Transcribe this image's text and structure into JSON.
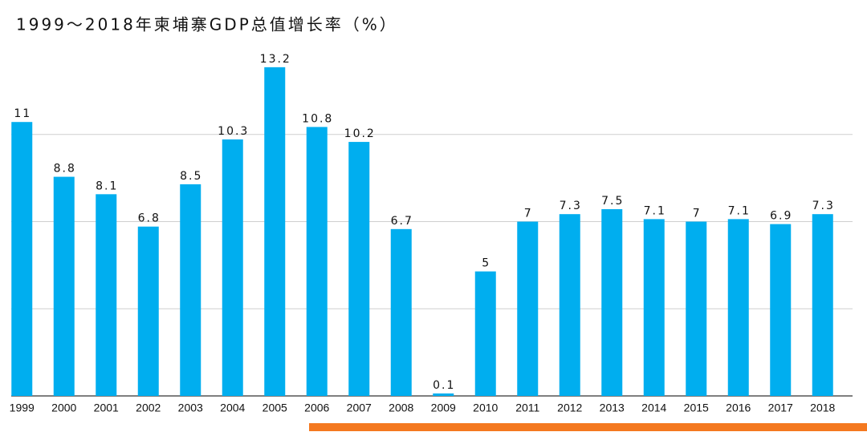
{
  "chart_data": {
    "type": "bar",
    "title": "1999～2018年柬埔寨GDP总值增长率（%）",
    "categories": [
      "1999",
      "2000",
      "2001",
      "2002",
      "2003",
      "2004",
      "2005",
      "2006",
      "2007",
      "2008",
      "2009",
      "2010",
      "2011",
      "2012",
      "2013",
      "2014",
      "2015",
      "2016",
      "2017",
      "2018"
    ],
    "values": [
      11,
      8.8,
      8.1,
      6.8,
      8.5,
      10.3,
      13.2,
      10.8,
      10.2,
      6.7,
      0.1,
      5,
      7,
      7.3,
      7.5,
      7.1,
      7,
      7.1,
      6.9,
      7.3
    ],
    "color": "#00aeef",
    "ylim": [
      0,
      14
    ],
    "yticks": [
      0,
      3.5,
      7,
      10.5
    ],
    "grid": true
  }
}
